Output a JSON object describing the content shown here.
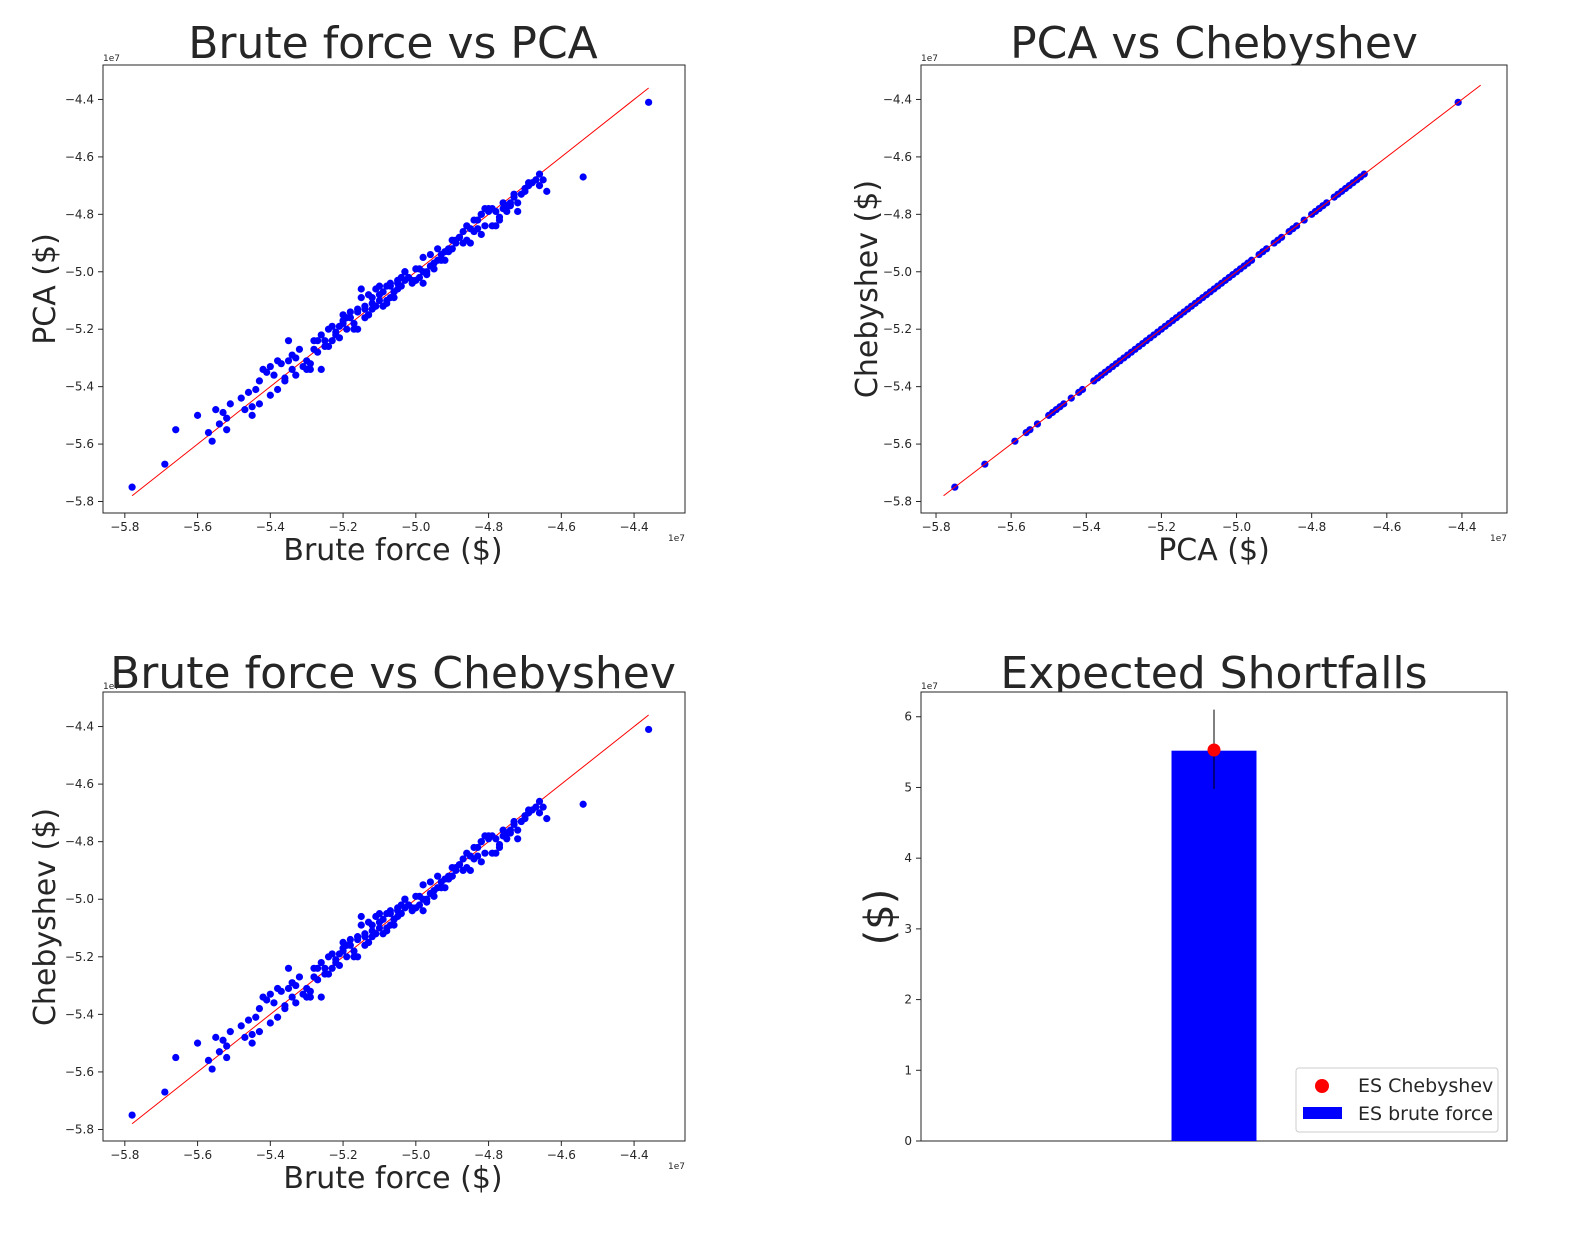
{
  "chart_data": [
    {
      "type": "scatter",
      "title": "Brute force vs PCA",
      "xlabel": "Brute force ($)",
      "ylabel": "PCA ($)",
      "x_offset_label": "1e7",
      "y_offset_label": "1e7",
      "xlim": [
        -5.86,
        -4.26
      ],
      "ylim": [
        -5.84,
        -4.28
      ],
      "xticks": [
        -5.8,
        -5.6,
        -5.4,
        -5.2,
        -5.0,
        -4.8,
        -4.6,
        -4.4
      ],
      "yticks": [
        -5.8,
        -5.6,
        -5.4,
        -5.2,
        -5.0,
        -4.8,
        -4.6,
        -4.4
      ],
      "xtick_labels": [
        "−5.8",
        "−5.6",
        "−5.4",
        "−5.2",
        "−5.0",
        "−4.8",
        "−4.6",
        "−4.4"
      ],
      "ytick_labels": [
        "−5.8",
        "−5.6",
        "−5.4",
        "−5.2",
        "−5.0",
        "−4.8",
        "−4.6",
        "−4.4"
      ],
      "marker_color": "#0000ff",
      "reference_line": {
        "color": "#ff0000",
        "from": [
          -5.78,
          -5.78
        ],
        "to": [
          -4.36,
          -4.36
        ]
      },
      "points": {
        "x": [
          -5.78,
          -5.69,
          -5.66,
          -5.6,
          -5.57,
          -5.56,
          -5.55,
          -5.54,
          -5.53,
          -5.52,
          -5.51,
          -5.48,
          -5.46,
          -5.45,
          -5.44,
          -5.43,
          -5.42,
          -5.41,
          -5.4,
          -5.39,
          -5.38,
          -5.37,
          -5.36,
          -5.35,
          -5.34,
          -5.33,
          -5.32,
          -5.31,
          -5.3,
          -5.29,
          -5.28,
          -5.27,
          -5.26,
          -5.25,
          -5.24,
          -5.23,
          -5.22,
          -5.21,
          -5.2,
          -5.19,
          -5.18,
          -5.17,
          -5.16,
          -5.15,
          -5.14,
          -5.13,
          -5.12,
          -5.11,
          -5.1,
          -5.09,
          -5.08,
          -5.07,
          -5.06,
          -5.05,
          -5.04,
          -5.03,
          -5.02,
          -5.01,
          -5.0,
          -4.99,
          -4.98,
          -4.97,
          -4.96,
          -4.95,
          -4.94,
          -4.93,
          -4.92,
          -4.91,
          -4.9,
          -4.89,
          -4.88,
          -4.87,
          -4.86,
          -4.85,
          -4.84,
          -4.83,
          -4.82,
          -4.81,
          -4.8,
          -4.79,
          -4.78,
          -4.77,
          -4.76,
          -4.75,
          -4.74,
          -4.73,
          -4.72,
          -4.71,
          -4.7,
          -4.69,
          -4.68,
          -4.67,
          -4.66,
          -4.65,
          -4.64,
          -4.54,
          -4.36,
          -5.45,
          -5.4,
          -5.36,
          -5.33,
          -5.3,
          -5.27,
          -5.24,
          -5.22,
          -5.2,
          -5.18,
          -5.16,
          -5.15,
          -5.13,
          -5.12,
          -5.1,
          -5.08,
          -5.06,
          -5.04,
          -5.02,
          -5.0,
          -4.98,
          -4.96,
          -4.93,
          -4.9,
          -4.87,
          -4.84,
          -4.81,
          -4.78,
          -4.75,
          -4.72,
          -4.69,
          -4.66,
          -5.25,
          -5.21,
          -5.17,
          -5.14,
          -5.11,
          -5.09,
          -5.07,
          -5.05,
          -5.03,
          -4.99,
          -4.95,
          -4.91,
          -4.88,
          -4.85,
          -4.82,
          -4.79,
          -4.76,
          -4.73,
          -4.7,
          -5.52,
          -5.47,
          -5.43,
          -5.38,
          -5.34,
          -5.29,
          -5.26,
          -5.23,
          -5.19,
          -5.16,
          -5.14,
          -5.12,
          -5.1,
          -5.08,
          -5.07,
          -5.05,
          -5.03,
          -5.01,
          -4.97,
          -4.94,
          -4.92,
          -4.89,
          -4.86,
          -4.83,
          -4.8,
          -4.77,
          -4.74,
          -5.35,
          -5.28,
          -5.2,
          -5.13,
          -5.06,
          -4.98,
          -4.9,
          -4.82
        ],
        "y": [
          -5.75,
          -5.67,
          -5.55,
          -5.5,
          -5.56,
          -5.59,
          -5.48,
          -5.53,
          -5.49,
          -5.55,
          -5.46,
          -5.44,
          -5.42,
          -5.47,
          -5.41,
          -5.38,
          -5.34,
          -5.35,
          -5.33,
          -5.36,
          -5.31,
          -5.32,
          -5.37,
          -5.24,
          -5.29,
          -5.3,
          -5.27,
          -5.33,
          -5.31,
          -5.34,
          -5.27,
          -5.24,
          -5.22,
          -5.24,
          -5.2,
          -5.19,
          -5.22,
          -5.23,
          -5.15,
          -5.2,
          -5.14,
          -5.18,
          -5.14,
          -5.09,
          -5.13,
          -5.08,
          -5.11,
          -5.06,
          -5.1,
          -5.12,
          -5.05,
          -5.09,
          -5.07,
          -5.04,
          -5.05,
          -5.03,
          -5.02,
          -5.04,
          -4.99,
          -5.02,
          -5.0,
          -5.01,
          -4.98,
          -4.97,
          -4.96,
          -4.94,
          -4.93,
          -4.92,
          -4.89,
          -4.9,
          -4.88,
          -4.86,
          -4.84,
          -4.85,
          -4.82,
          -4.82,
          -4.8,
          -4.78,
          -4.79,
          -4.78,
          -4.84,
          -4.81,
          -4.76,
          -4.77,
          -4.77,
          -4.74,
          -4.76,
          -4.73,
          -4.72,
          -4.69,
          -4.69,
          -4.68,
          -4.7,
          -4.68,
          -4.72,
          -4.67,
          -4.41,
          -5.5,
          -5.43,
          -5.38,
          -5.36,
          -5.34,
          -5.28,
          -5.26,
          -5.21,
          -5.17,
          -5.16,
          -5.13,
          -5.06,
          -5.15,
          -5.09,
          -5.05,
          -5.1,
          -5.09,
          -5.02,
          -5.02,
          -5.03,
          -5.04,
          -4.94,
          -4.96,
          -4.92,
          -4.9,
          -4.86,
          -4.84,
          -4.79,
          -4.79,
          -4.79,
          -4.7,
          -4.66,
          -5.26,
          -5.19,
          -5.2,
          -5.12,
          -5.12,
          -5.07,
          -5.04,
          -5.03,
          -5.0,
          -4.99,
          -4.99,
          -4.93,
          -4.88,
          -4.9,
          -4.8,
          -4.84,
          -4.78,
          -4.73,
          -4.71,
          -5.51,
          -5.48,
          -5.46,
          -5.41,
          -5.34,
          -5.32,
          -5.34,
          -5.24,
          -5.16,
          -5.2,
          -5.16,
          -5.13,
          -5.08,
          -5.11,
          -5.05,
          -5.06,
          -5.0,
          -5.03,
          -5.0,
          -4.92,
          -4.96,
          -4.89,
          -4.89,
          -4.85,
          -4.78,
          -4.82,
          -4.76,
          -5.31,
          -5.24,
          -5.18,
          -5.15,
          -5.07,
          -4.95,
          -4.92,
          -4.87
        ]
      }
    },
    {
      "type": "scatter",
      "title": "PCA vs Chebyshev",
      "xlabel": "PCA ($)",
      "ylabel": "Chebyshev ($)",
      "x_offset_label": "1e7",
      "y_offset_label": "1e7",
      "xlim": [
        -5.84,
        -4.28
      ],
      "ylim": [
        -5.84,
        -4.28
      ],
      "xticks": [
        -5.8,
        -5.6,
        -5.4,
        -5.2,
        -5.0,
        -4.8,
        -4.6,
        -4.4
      ],
      "yticks": [
        -5.8,
        -5.6,
        -5.4,
        -5.2,
        -5.0,
        -4.8,
        -4.6,
        -4.4
      ],
      "xtick_labels": [
        "−5.8",
        "−5.6",
        "−5.4",
        "−5.2",
        "−5.0",
        "−4.8",
        "−4.6",
        "−4.4"
      ],
      "ytick_labels": [
        "−5.8",
        "−5.6",
        "−5.4",
        "−5.2",
        "−5.0",
        "−4.8",
        "−4.6",
        "−4.4"
      ],
      "marker_color": "#0000ff",
      "reference_line": {
        "color": "#ff0000",
        "from": [
          -5.78,
          -5.78
        ],
        "to": [
          -4.35,
          -4.35
        ]
      },
      "points": {
        "x": [
          -5.75,
          -5.67,
          -5.59,
          -5.56,
          -5.55,
          -5.53,
          -5.5,
          -5.49,
          -5.48,
          -5.47,
          -5.46,
          -5.44,
          -5.42,
          -5.41,
          -5.38,
          -5.37,
          -5.36,
          -5.35,
          -5.34,
          -5.33,
          -5.32,
          -5.31,
          -5.3,
          -5.29,
          -5.28,
          -5.27,
          -5.26,
          -5.25,
          -5.24,
          -5.23,
          -5.22,
          -5.21,
          -5.2,
          -5.19,
          -5.18,
          -5.17,
          -5.16,
          -5.15,
          -5.14,
          -5.13,
          -5.12,
          -5.11,
          -5.1,
          -5.09,
          -5.08,
          -5.07,
          -5.06,
          -5.05,
          -5.04,
          -5.03,
          -5.02,
          -5.01,
          -5.0,
          -4.99,
          -4.98,
          -4.97,
          -4.96,
          -4.94,
          -4.93,
          -4.92,
          -4.9,
          -4.89,
          -4.88,
          -4.86,
          -4.85,
          -4.84,
          -4.82,
          -4.8,
          -4.79,
          -4.78,
          -4.77,
          -4.76,
          -4.74,
          -4.73,
          -4.72,
          -4.71,
          -4.7,
          -4.69,
          -4.68,
          -4.67,
          -4.66,
          -4.41
        ],
        "y": [
          -5.75,
          -5.67,
          -5.59,
          -5.56,
          -5.55,
          -5.53,
          -5.5,
          -5.49,
          -5.48,
          -5.47,
          -5.46,
          -5.44,
          -5.42,
          -5.41,
          -5.38,
          -5.37,
          -5.36,
          -5.35,
          -5.34,
          -5.33,
          -5.32,
          -5.31,
          -5.3,
          -5.29,
          -5.28,
          -5.27,
          -5.26,
          -5.25,
          -5.24,
          -5.23,
          -5.22,
          -5.21,
          -5.2,
          -5.19,
          -5.18,
          -5.17,
          -5.16,
          -5.15,
          -5.14,
          -5.13,
          -5.12,
          -5.11,
          -5.1,
          -5.09,
          -5.08,
          -5.07,
          -5.06,
          -5.05,
          -5.04,
          -5.03,
          -5.02,
          -5.01,
          -5.0,
          -4.99,
          -4.98,
          -4.97,
          -4.96,
          -4.94,
          -4.93,
          -4.92,
          -4.9,
          -4.89,
          -4.88,
          -4.86,
          -4.85,
          -4.84,
          -4.82,
          -4.8,
          -4.79,
          -4.78,
          -4.77,
          -4.76,
          -4.74,
          -4.73,
          -4.72,
          -4.71,
          -4.7,
          -4.69,
          -4.68,
          -4.67,
          -4.66,
          -4.41
        ]
      }
    },
    {
      "type": "scatter",
      "title": "Brute force vs Chebyshev",
      "xlabel": "Brute force ($)",
      "ylabel": "Chebyshev ($)",
      "x_offset_label": "1e7",
      "y_offset_label": "1e7",
      "xlim": [
        -5.86,
        -4.26
      ],
      "ylim": [
        -5.84,
        -4.28
      ],
      "xticks": [
        -5.8,
        -5.6,
        -5.4,
        -5.2,
        -5.0,
        -4.8,
        -4.6,
        -4.4
      ],
      "yticks": [
        -5.8,
        -5.6,
        -5.4,
        -5.2,
        -5.0,
        -4.8,
        -4.6,
        -4.4
      ],
      "xtick_labels": [
        "−5.8",
        "−5.6",
        "−5.4",
        "−5.2",
        "−5.0",
        "−4.8",
        "−4.6",
        "−4.4"
      ],
      "ytick_labels": [
        "−5.8",
        "−5.6",
        "−5.4",
        "−5.2",
        "−5.0",
        "−4.8",
        "−4.6",
        "−4.4"
      ],
      "marker_color": "#0000ff",
      "reference_line": {
        "color": "#ff0000",
        "from": [
          -5.78,
          -5.78
        ],
        "to": [
          -4.36,
          -4.36
        ]
      },
      "points": {
        "x": [
          -5.78,
          -5.69,
          -5.66,
          -5.6,
          -5.57,
          -5.56,
          -5.55,
          -5.54,
          -5.53,
          -5.52,
          -5.51,
          -5.48,
          -5.46,
          -5.45,
          -5.44,
          -5.43,
          -5.42,
          -5.41,
          -5.4,
          -5.39,
          -5.38,
          -5.37,
          -5.36,
          -5.35,
          -5.34,
          -5.33,
          -5.32,
          -5.31,
          -5.3,
          -5.29,
          -5.28,
          -5.27,
          -5.26,
          -5.25,
          -5.24,
          -5.23,
          -5.22,
          -5.21,
          -5.2,
          -5.19,
          -5.18,
          -5.17,
          -5.16,
          -5.15,
          -5.14,
          -5.13,
          -5.12,
          -5.11,
          -5.1,
          -5.09,
          -5.08,
          -5.07,
          -5.06,
          -5.05,
          -5.04,
          -5.03,
          -5.02,
          -5.01,
          -5.0,
          -4.99,
          -4.98,
          -4.97,
          -4.96,
          -4.95,
          -4.94,
          -4.93,
          -4.92,
          -4.91,
          -4.9,
          -4.89,
          -4.88,
          -4.87,
          -4.86,
          -4.85,
          -4.84,
          -4.83,
          -4.82,
          -4.81,
          -4.8,
          -4.79,
          -4.78,
          -4.77,
          -4.76,
          -4.75,
          -4.74,
          -4.73,
          -4.72,
          -4.71,
          -4.7,
          -4.69,
          -4.68,
          -4.67,
          -4.66,
          -4.65,
          -4.64,
          -4.54,
          -4.36,
          -5.45,
          -5.4,
          -5.36,
          -5.33,
          -5.3,
          -5.27,
          -5.24,
          -5.22,
          -5.2,
          -5.18,
          -5.16,
          -5.15,
          -5.13,
          -5.12,
          -5.1,
          -5.08,
          -5.06,
          -5.04,
          -5.02,
          -5.0,
          -4.98,
          -4.96,
          -4.93,
          -4.9,
          -4.87,
          -4.84,
          -4.81,
          -4.78,
          -4.75,
          -4.72,
          -4.69,
          -4.66,
          -5.25,
          -5.21,
          -5.17,
          -5.14,
          -5.11,
          -5.09,
          -5.07,
          -5.05,
          -5.03,
          -4.99,
          -4.95,
          -4.91,
          -4.88,
          -4.85,
          -4.82,
          -4.79,
          -4.76,
          -4.73,
          -4.7,
          -5.52,
          -5.47,
          -5.43,
          -5.38,
          -5.34,
          -5.29,
          -5.26,
          -5.23,
          -5.19,
          -5.16,
          -5.14,
          -5.12,
          -5.1,
          -5.08,
          -5.07,
          -5.05,
          -5.03,
          -5.01,
          -4.97,
          -4.94,
          -4.92,
          -4.89,
          -4.86,
          -4.83,
          -4.8,
          -4.77,
          -4.74,
          -5.35,
          -5.28,
          -5.2,
          -5.13,
          -5.06,
          -4.98,
          -4.9,
          -4.82
        ],
        "y": [
          -5.75,
          -5.67,
          -5.55,
          -5.5,
          -5.56,
          -5.59,
          -5.48,
          -5.53,
          -5.49,
          -5.55,
          -5.46,
          -5.44,
          -5.42,
          -5.47,
          -5.41,
          -5.38,
          -5.34,
          -5.35,
          -5.33,
          -5.36,
          -5.31,
          -5.32,
          -5.37,
          -5.24,
          -5.29,
          -5.3,
          -5.27,
          -5.33,
          -5.31,
          -5.34,
          -5.27,
          -5.24,
          -5.22,
          -5.24,
          -5.2,
          -5.19,
          -5.22,
          -5.23,
          -5.15,
          -5.2,
          -5.14,
          -5.18,
          -5.14,
          -5.09,
          -5.13,
          -5.08,
          -5.11,
          -5.06,
          -5.1,
          -5.12,
          -5.05,
          -5.09,
          -5.07,
          -5.04,
          -5.05,
          -5.03,
          -5.02,
          -5.04,
          -4.99,
          -5.02,
          -5.0,
          -5.01,
          -4.98,
          -4.97,
          -4.96,
          -4.94,
          -4.93,
          -4.92,
          -4.89,
          -4.9,
          -4.88,
          -4.86,
          -4.84,
          -4.85,
          -4.82,
          -4.82,
          -4.8,
          -4.78,
          -4.79,
          -4.78,
          -4.84,
          -4.81,
          -4.76,
          -4.77,
          -4.77,
          -4.74,
          -4.76,
          -4.73,
          -4.72,
          -4.69,
          -4.69,
          -4.68,
          -4.7,
          -4.68,
          -4.72,
          -4.67,
          -4.41,
          -5.5,
          -5.43,
          -5.38,
          -5.36,
          -5.34,
          -5.28,
          -5.26,
          -5.21,
          -5.17,
          -5.16,
          -5.13,
          -5.06,
          -5.15,
          -5.09,
          -5.05,
          -5.1,
          -5.09,
          -5.02,
          -5.02,
          -5.03,
          -5.04,
          -4.94,
          -4.96,
          -4.92,
          -4.9,
          -4.86,
          -4.84,
          -4.79,
          -4.79,
          -4.79,
          -4.7,
          -4.66,
          -5.26,
          -5.19,
          -5.2,
          -5.12,
          -5.12,
          -5.07,
          -5.04,
          -5.03,
          -5.0,
          -4.99,
          -4.99,
          -4.93,
          -4.88,
          -4.9,
          -4.8,
          -4.84,
          -4.78,
          -4.73,
          -4.71,
          -5.51,
          -5.48,
          -5.46,
          -5.41,
          -5.34,
          -5.32,
          -5.34,
          -5.24,
          -5.16,
          -5.2,
          -5.16,
          -5.13,
          -5.08,
          -5.11,
          -5.05,
          -5.06,
          -5.0,
          -5.03,
          -5.0,
          -4.92,
          -4.96,
          -4.89,
          -4.89,
          -4.85,
          -4.78,
          -4.82,
          -4.76,
          -5.31,
          -5.24,
          -5.18,
          -5.15,
          -5.07,
          -4.95,
          -4.92,
          -4.87
        ]
      }
    },
    {
      "type": "bar",
      "title": "Expected Shortfalls",
      "xlabel": "",
      "ylabel": "($)",
      "y_offset_label": "1e7",
      "xlim": [
        -1.0,
        1.0
      ],
      "ylim": [
        0,
        6.35
      ],
      "yticks": [
        0,
        1,
        2,
        3,
        4,
        5,
        6
      ],
      "ytick_labels": [
        "0",
        "1",
        "2",
        "3",
        "4",
        "5",
        "6"
      ],
      "bar": {
        "x": 0.0,
        "width": 0.29,
        "value": 5.52,
        "color": "#0000ff",
        "name": "ES brute force"
      },
      "point": {
        "x": 0.0,
        "value": 5.53,
        "color": "#ff0000",
        "name": "ES Chebyshev",
        "error_low": 4.98,
        "error_high": 6.1
      },
      "legend": {
        "placement": "lower right",
        "entries": [
          {
            "label": "ES Chebyshev",
            "marker": "point",
            "color": "#ff0000"
          },
          {
            "label": "ES brute force",
            "marker": "bar",
            "color": "#0000ff"
          }
        ]
      }
    }
  ]
}
